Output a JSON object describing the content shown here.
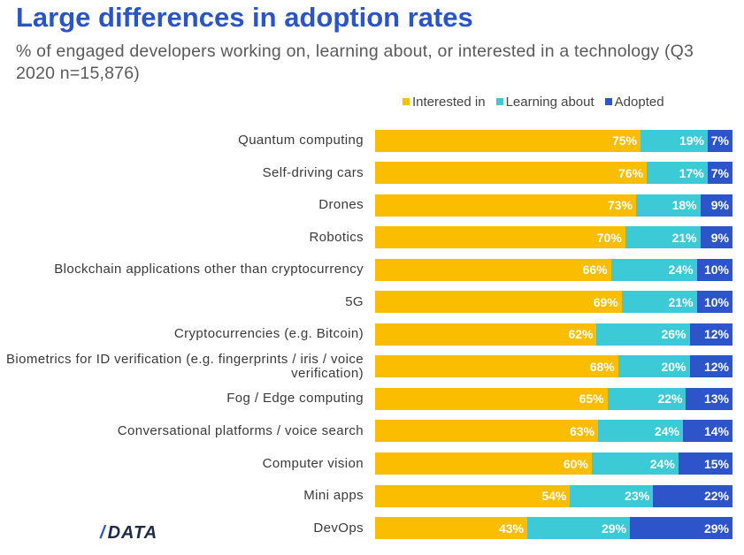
{
  "header": {
    "title": "Large differences in adoption rates",
    "subtitle": "% of engaged developers working on, learning about, or interested in a technology (Q3 2020 n=15,876)"
  },
  "logo": {
    "slash": "/",
    "text": "DATA"
  },
  "colors": {
    "interested": "#fbbd00",
    "learning": "#3ccbd6",
    "adopted": "#2d55c9"
  },
  "chart_data": {
    "type": "bar",
    "orientation": "horizontal",
    "stacked": true,
    "normalized_percent": true,
    "legend_position": "top-right",
    "grid": false,
    "xlim": [
      0,
      100
    ],
    "categories": [
      "Quantum computing",
      "Self-driving cars",
      "Drones",
      "Robotics",
      "Blockchain applications other than cryptocurrency",
      "5G",
      "Cryptocurrencies (e.g. Bitcoin)",
      "Biometrics for ID verification (e.g. fingerprints / iris / voice verification)",
      "Fog / Edge computing",
      "Conversational platforms / voice search",
      "Computer vision",
      "Mini apps",
      "DevOps"
    ],
    "series": [
      {
        "name": "Interested in",
        "key": "interested",
        "values": [
          75,
          76,
          73,
          70,
          66,
          69,
          62,
          68,
          65,
          63,
          60,
          54,
          43
        ]
      },
      {
        "name": "Learning about",
        "key": "learning",
        "values": [
          19,
          17,
          18,
          21,
          24,
          21,
          26,
          20,
          22,
          24,
          24,
          23,
          29
        ]
      },
      {
        "name": "Adopted",
        "key": "adopted",
        "values": [
          7,
          7,
          9,
          9,
          10,
          10,
          12,
          12,
          13,
          14,
          15,
          22,
          29
        ]
      }
    ],
    "value_suffix": "%"
  }
}
